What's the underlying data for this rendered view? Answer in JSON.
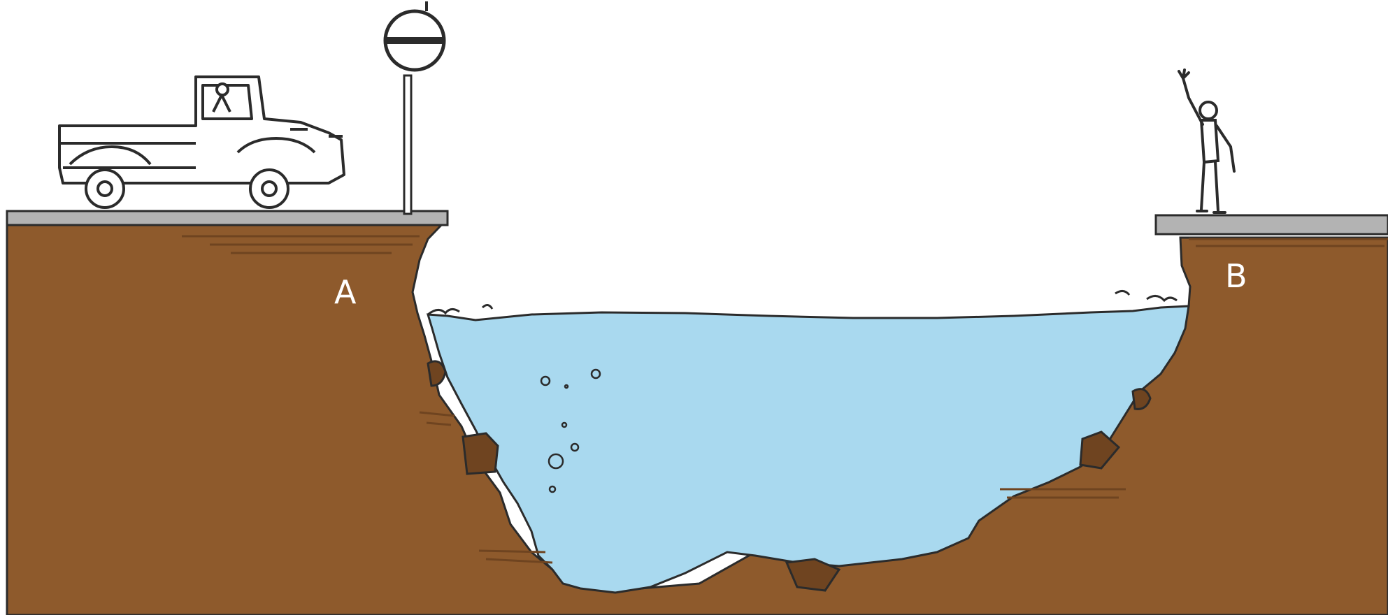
{
  "labels": {
    "a": "A",
    "b": "B"
  },
  "colors": {
    "soil": "#8e5a2c",
    "soil_dark": "#6f4420",
    "water": "#a9d9ef",
    "road": "#b3b3b3",
    "ink": "#2b2b2b"
  }
}
